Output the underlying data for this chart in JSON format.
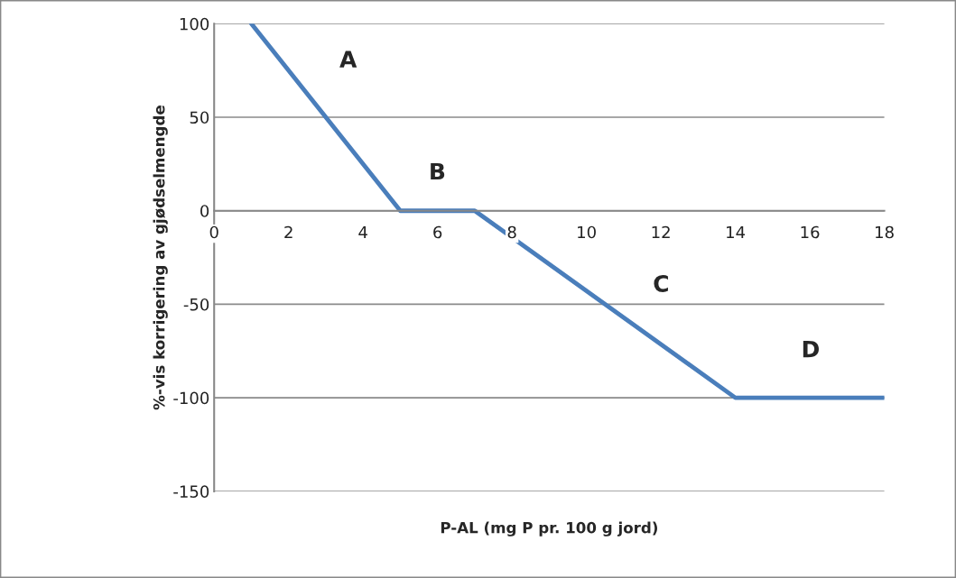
{
  "chart_data": {
    "type": "line",
    "xlabel": "P-AL (mg P pr. 100 g jord)",
    "ylabel": "%-vis korrigering av gjødselmengde",
    "x": [
      1,
      5,
      7,
      14,
      18
    ],
    "series": [
      {
        "color": "#4a7ebb",
        "values": [
          100,
          0,
          0,
          -100,
          -100
        ]
      }
    ],
    "xlim": [
      0,
      18
    ],
    "xticks": [
      0,
      2,
      4,
      6,
      8,
      10,
      12,
      14,
      16,
      18
    ],
    "ylim": [
      -150,
      100
    ],
    "yticks": [
      -150,
      -100,
      -50,
      0,
      50,
      100
    ],
    "grid": "y",
    "marker": "none",
    "line_style": "solid",
    "annotations": [
      "A",
      "B",
      "C",
      "D"
    ]
  }
}
